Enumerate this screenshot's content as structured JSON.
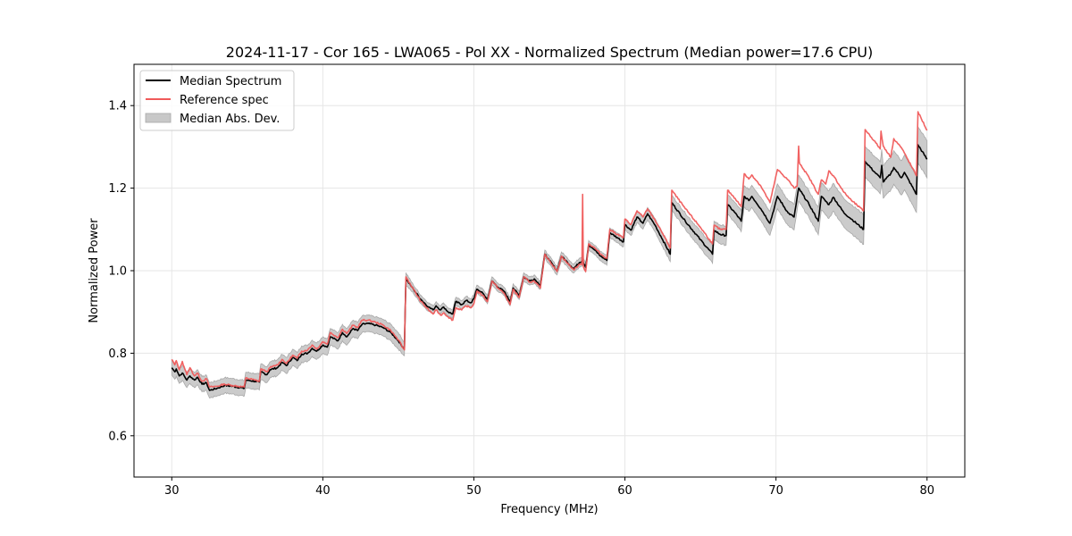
{
  "chart_data": {
    "type": "line",
    "title": "2024-11-17 - Cor 165 - LWA065 - Pol XX - Normalized Spectrum (Median power=17.6 CPU)",
    "xlabel": "Frequency (MHz)",
    "ylabel": "Normalized Power",
    "xlim": [
      27.5,
      82.5
    ],
    "ylim": [
      0.5,
      1.5
    ],
    "xticks": [
      30,
      40,
      50,
      60,
      70,
      80
    ],
    "xtick_labels": [
      "30",
      "40",
      "50",
      "60",
      "70",
      "80"
    ],
    "yticks": [
      0.6,
      0.8,
      1.0,
      1.2,
      1.4
    ],
    "ytick_labels": [
      "0.6",
      "0.8",
      "1.0",
      "1.2",
      "1.4"
    ],
    "grid": true,
    "legend": {
      "placement": "top-left",
      "entries": [
        {
          "label": "Median Spectrum",
          "kind": "line",
          "color": "#000000"
        },
        {
          "label": "Reference spec",
          "kind": "line",
          "color": "#f05a5a"
        },
        {
          "label": "Median Abs. Dev.",
          "kind": "patch",
          "color": "#c8c8c8"
        }
      ]
    },
    "series": [
      {
        "name": "Median Spectrum",
        "color": "#000000",
        "points": [
          [
            30.0,
            0.765
          ],
          [
            30.2,
            0.755
          ],
          [
            30.3,
            0.762
          ],
          [
            30.5,
            0.745
          ],
          [
            30.7,
            0.752
          ],
          [
            31.0,
            0.735
          ],
          [
            31.2,
            0.745
          ],
          [
            31.5,
            0.735
          ],
          [
            31.7,
            0.742
          ],
          [
            32.0,
            0.725
          ],
          [
            32.3,
            0.728
          ],
          [
            32.5,
            0.71
          ],
          [
            33.0,
            0.715
          ],
          [
            33.5,
            0.722
          ],
          [
            34.0,
            0.72
          ],
          [
            34.8,
            0.715
          ],
          [
            34.9,
            0.735
          ],
          [
            35.5,
            0.732
          ],
          [
            35.8,
            0.73
          ],
          [
            35.9,
            0.755
          ],
          [
            36.3,
            0.748
          ],
          [
            36.5,
            0.76
          ],
          [
            37.0,
            0.765
          ],
          [
            37.3,
            0.778
          ],
          [
            37.6,
            0.77
          ],
          [
            38.0,
            0.79
          ],
          [
            38.3,
            0.782
          ],
          [
            38.6,
            0.798
          ],
          [
            39.0,
            0.8
          ],
          [
            39.3,
            0.812
          ],
          [
            39.6,
            0.805
          ],
          [
            40.0,
            0.82
          ],
          [
            40.3,
            0.815
          ],
          [
            40.5,
            0.84
          ],
          [
            41.0,
            0.83
          ],
          [
            41.3,
            0.85
          ],
          [
            41.6,
            0.84
          ],
          [
            42.0,
            0.86
          ],
          [
            42.3,
            0.855
          ],
          [
            42.6,
            0.87
          ],
          [
            43.0,
            0.872
          ],
          [
            43.5,
            0.868
          ],
          [
            44.0,
            0.862
          ],
          [
            44.5,
            0.85
          ],
          [
            45.0,
            0.83
          ],
          [
            45.4,
            0.81
          ],
          [
            45.5,
            0.98
          ],
          [
            46.0,
            0.955
          ],
          [
            46.5,
            0.93
          ],
          [
            47.0,
            0.912
          ],
          [
            47.3,
            0.905
          ],
          [
            47.5,
            0.915
          ],
          [
            47.8,
            0.905
          ],
          [
            48.0,
            0.912
          ],
          [
            48.3,
            0.9
          ],
          [
            48.6,
            0.895
          ],
          [
            48.8,
            0.925
          ],
          [
            49.2,
            0.918
          ],
          [
            49.5,
            0.928
          ],
          [
            49.8,
            0.922
          ],
          [
            50.0,
            0.932
          ],
          [
            50.2,
            0.955
          ],
          [
            50.6,
            0.945
          ],
          [
            50.9,
            0.93
          ],
          [
            51.2,
            0.975
          ],
          [
            51.6,
            0.96
          ],
          [
            52.0,
            0.95
          ],
          [
            52.4,
            0.925
          ],
          [
            52.6,
            0.958
          ],
          [
            53.0,
            0.94
          ],
          [
            53.3,
            0.985
          ],
          [
            53.7,
            0.975
          ],
          [
            54.0,
            0.98
          ],
          [
            54.4,
            0.965
          ],
          [
            54.7,
            1.04
          ],
          [
            55.0,
            1.025
          ],
          [
            55.5,
            1.0
          ],
          [
            55.8,
            1.035
          ],
          [
            56.2,
            1.02
          ],
          [
            56.6,
            1.005
          ],
          [
            57.0,
            1.02
          ],
          [
            57.2,
            1.025
          ],
          [
            57.4,
            1.008
          ],
          [
            57.6,
            1.062
          ],
          [
            58.0,
            1.05
          ],
          [
            58.4,
            1.035
          ],
          [
            58.8,
            1.025
          ],
          [
            59.0,
            1.092
          ],
          [
            59.5,
            1.08
          ],
          [
            59.9,
            1.07
          ],
          [
            60.0,
            1.112
          ],
          [
            60.4,
            1.098
          ],
          [
            60.8,
            1.13
          ],
          [
            61.2,
            1.115
          ],
          [
            61.5,
            1.138
          ],
          [
            62.0,
            1.11
          ],
          [
            62.5,
            1.075
          ],
          [
            63.0,
            1.04
          ],
          [
            63.1,
            1.165
          ],
          [
            64.0,
            1.12
          ],
          [
            65.0,
            1.075
          ],
          [
            65.8,
            1.04
          ],
          [
            65.9,
            1.098
          ],
          [
            66.3,
            1.088
          ],
          [
            66.7,
            1.085
          ],
          [
            66.8,
            1.16
          ],
          [
            67.3,
            1.14
          ],
          [
            67.7,
            1.12
          ],
          [
            67.9,
            1.18
          ],
          [
            68.2,
            1.17
          ],
          [
            68.4,
            1.18
          ],
          [
            69.0,
            1.15
          ],
          [
            69.6,
            1.115
          ],
          [
            70.1,
            1.18
          ],
          [
            70.8,
            1.14
          ],
          [
            71.2,
            1.13
          ],
          [
            71.5,
            1.2
          ],
          [
            72.2,
            1.16
          ],
          [
            72.8,
            1.12
          ],
          [
            73.0,
            1.18
          ],
          [
            73.5,
            1.16
          ],
          [
            73.8,
            1.178
          ],
          [
            74.5,
            1.14
          ],
          [
            75.0,
            1.125
          ],
          [
            75.8,
            1.1
          ],
          [
            75.9,
            1.265
          ],
          [
            76.5,
            1.24
          ],
          [
            76.9,
            1.225
          ],
          [
            77.0,
            1.255
          ],
          [
            77.1,
            1.215
          ],
          [
            77.6,
            1.235
          ],
          [
            77.8,
            1.25
          ],
          [
            78.3,
            1.225
          ],
          [
            78.5,
            1.238
          ],
          [
            79.3,
            1.185
          ],
          [
            79.4,
            1.305
          ],
          [
            80.0,
            1.27
          ]
        ]
      },
      {
        "name": "Reference spec",
        "color": "#f05a5a",
        "points": [
          [
            30.0,
            0.785
          ],
          [
            30.2,
            0.772
          ],
          [
            30.3,
            0.782
          ],
          [
            30.5,
            0.76
          ],
          [
            30.7,
            0.78
          ],
          [
            31.0,
            0.748
          ],
          [
            31.2,
            0.765
          ],
          [
            31.5,
            0.745
          ],
          [
            31.7,
            0.752
          ],
          [
            32.0,
            0.732
          ],
          [
            32.3,
            0.738
          ],
          [
            32.5,
            0.718
          ],
          [
            33.0,
            0.72
          ],
          [
            33.5,
            0.725
          ],
          [
            34.0,
            0.722
          ],
          [
            34.8,
            0.718
          ],
          [
            34.9,
            0.74
          ],
          [
            35.5,
            0.735
          ],
          [
            35.8,
            0.732
          ],
          [
            35.9,
            0.762
          ],
          [
            36.3,
            0.755
          ],
          [
            36.5,
            0.765
          ],
          [
            37.0,
            0.772
          ],
          [
            37.3,
            0.785
          ],
          [
            37.6,
            0.775
          ],
          [
            38.0,
            0.795
          ],
          [
            38.3,
            0.788
          ],
          [
            38.6,
            0.805
          ],
          [
            39.0,
            0.808
          ],
          [
            39.3,
            0.82
          ],
          [
            39.6,
            0.81
          ],
          [
            40.0,
            0.828
          ],
          [
            40.3,
            0.822
          ],
          [
            40.5,
            0.85
          ],
          [
            41.0,
            0.838
          ],
          [
            41.3,
            0.858
          ],
          [
            41.6,
            0.848
          ],
          [
            42.0,
            0.868
          ],
          [
            42.3,
            0.862
          ],
          [
            42.6,
            0.88
          ],
          [
            43.0,
            0.88
          ],
          [
            43.5,
            0.875
          ],
          [
            44.0,
            0.868
          ],
          [
            44.5,
            0.855
          ],
          [
            45.0,
            0.832
          ],
          [
            45.4,
            0.808
          ],
          [
            45.5,
            0.985
          ],
          [
            46.0,
            0.955
          ],
          [
            46.5,
            0.925
          ],
          [
            47.0,
            0.905
          ],
          [
            47.3,
            0.895
          ],
          [
            47.5,
            0.905
          ],
          [
            47.8,
            0.892
          ],
          [
            48.0,
            0.898
          ],
          [
            48.3,
            0.888
          ],
          [
            48.6,
            0.88
          ],
          [
            48.8,
            0.91
          ],
          [
            49.2,
            0.905
          ],
          [
            49.5,
            0.915
          ],
          [
            49.8,
            0.91
          ],
          [
            50.0,
            0.92
          ],
          [
            50.2,
            0.95
          ],
          [
            50.6,
            0.94
          ],
          [
            50.9,
            0.925
          ],
          [
            51.2,
            0.975
          ],
          [
            51.6,
            0.958
          ],
          [
            52.0,
            0.945
          ],
          [
            52.4,
            0.918
          ],
          [
            52.6,
            0.955
          ],
          [
            53.0,
            0.935
          ],
          [
            53.3,
            0.985
          ],
          [
            53.7,
            0.972
          ],
          [
            54.0,
            0.975
          ],
          [
            54.4,
            0.958
          ],
          [
            54.7,
            1.04
          ],
          [
            55.0,
            1.025
          ],
          [
            55.5,
            0.998
          ],
          [
            55.8,
            1.035
          ],
          [
            56.2,
            1.018
          ],
          [
            56.6,
            1.002
          ],
          [
            57.0,
            1.015
          ],
          [
            57.15,
            1.015
          ],
          [
            57.2,
            1.185
          ],
          [
            57.25,
            1.01
          ],
          [
            57.4,
            0.998
          ],
          [
            57.6,
            1.065
          ],
          [
            58.0,
            1.055
          ],
          [
            58.4,
            1.04
          ],
          [
            58.8,
            1.03
          ],
          [
            59.0,
            1.1
          ],
          [
            59.5,
            1.088
          ],
          [
            59.9,
            1.08
          ],
          [
            60.0,
            1.125
          ],
          [
            60.4,
            1.112
          ],
          [
            60.8,
            1.145
          ],
          [
            61.2,
            1.13
          ],
          [
            61.5,
            1.15
          ],
          [
            62.0,
            1.122
          ],
          [
            62.5,
            1.09
          ],
          [
            63.0,
            1.055
          ],
          [
            63.1,
            1.195
          ],
          [
            64.0,
            1.15
          ],
          [
            65.0,
            1.105
          ],
          [
            65.8,
            1.065
          ],
          [
            65.9,
            1.11
          ],
          [
            66.3,
            1.1
          ],
          [
            66.7,
            1.1
          ],
          [
            66.8,
            1.195
          ],
          [
            67.3,
            1.175
          ],
          [
            67.7,
            1.155
          ],
          [
            67.9,
            1.235
          ],
          [
            68.2,
            1.222
          ],
          [
            68.4,
            1.232
          ],
          [
            69.0,
            1.205
          ],
          [
            69.6,
            1.165
          ],
          [
            70.1,
            1.245
          ],
          [
            70.8,
            1.22
          ],
          [
            71.2,
            1.2
          ],
          [
            71.4,
            1.205
          ],
          [
            71.5,
            1.302
          ],
          [
            71.55,
            1.262
          ],
          [
            72.2,
            1.225
          ],
          [
            72.8,
            1.185
          ],
          [
            73.0,
            1.22
          ],
          [
            73.3,
            1.21
          ],
          [
            73.5,
            1.242
          ],
          [
            73.8,
            1.23
          ],
          [
            74.5,
            1.19
          ],
          [
            75.0,
            1.17
          ],
          [
            75.8,
            1.145
          ],
          [
            75.9,
            1.342
          ],
          [
            76.5,
            1.315
          ],
          [
            76.9,
            1.295
          ],
          [
            76.95,
            1.338
          ],
          [
            77.1,
            1.302
          ],
          [
            77.6,
            1.275
          ],
          [
            77.8,
            1.32
          ],
          [
            78.3,
            1.298
          ],
          [
            78.5,
            1.285
          ],
          [
            79.3,
            1.23
          ],
          [
            79.4,
            1.385
          ],
          [
            80.0,
            1.34
          ]
        ]
      }
    ],
    "mad_band": {
      "name": "Median Abs. Dev.",
      "color": "#c8c8c8",
      "halfwidth_by_frequency": [
        [
          30,
          0.018
        ],
        [
          40,
          0.02
        ],
        [
          45,
          0.02
        ],
        [
          46,
          0.01
        ],
        [
          55,
          0.01
        ],
        [
          60,
          0.012
        ],
        [
          63,
          0.018
        ],
        [
          66,
          0.022
        ],
        [
          70,
          0.03
        ],
        [
          75,
          0.035
        ],
        [
          80,
          0.045
        ]
      ]
    }
  }
}
